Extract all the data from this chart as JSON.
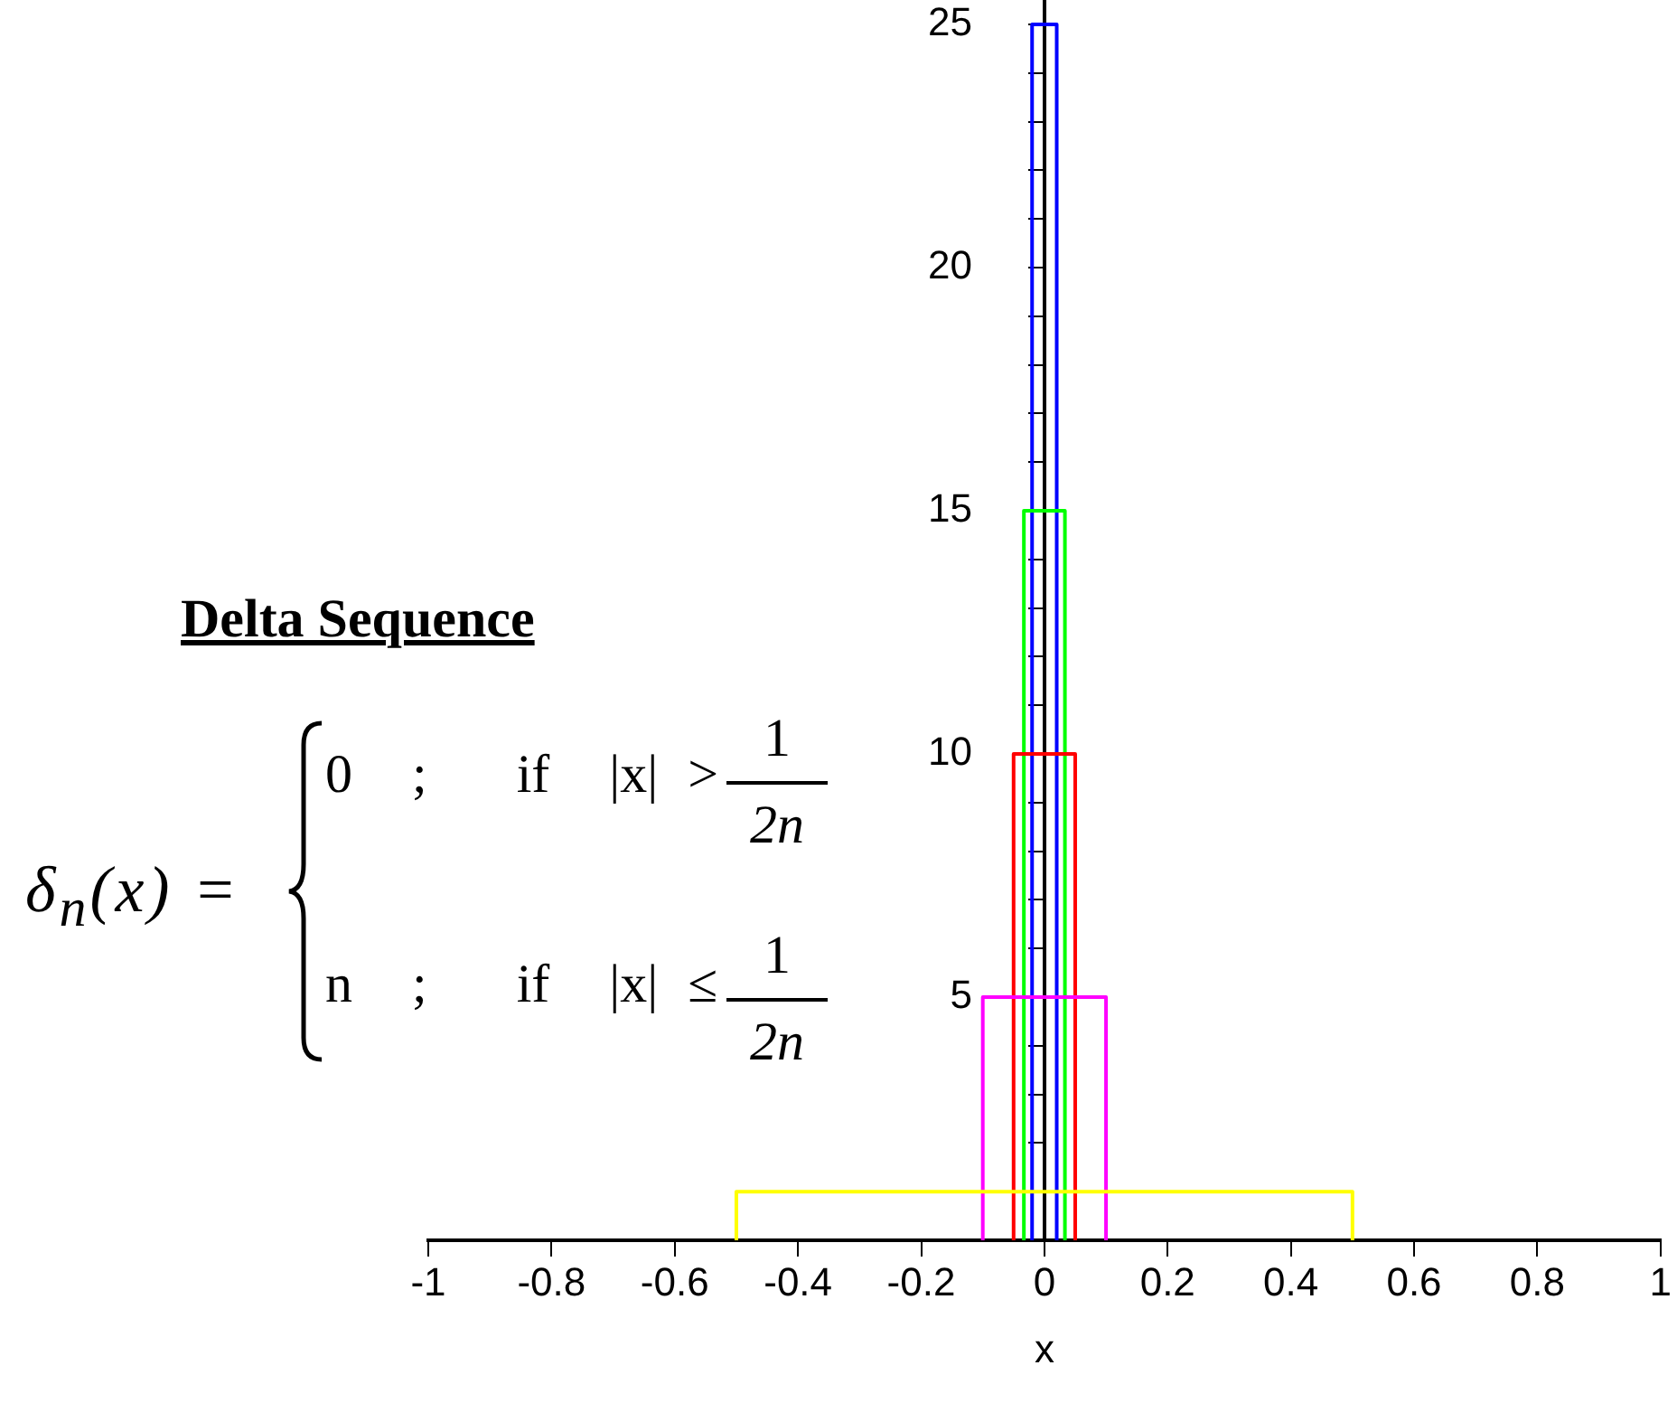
{
  "chart_data": {
    "type": "line",
    "xlabel": "x",
    "annotations": [
      "Delta Sequence",
      "δ$_{n}$(x) =",
      "0  ;   if  |x| >",
      "1",
      "2n",
      "n  ;   if  |x| ≤",
      "1",
      "2n"
    ],
    "series": [
      {
        "color": "#ffff00",
        "x": [
          -0.5,
          -0.5,
          0.5,
          0.5
        ],
        "values": [
          0,
          1,
          1,
          0
        ]
      },
      {
        "color": "#ff00ff",
        "x": [
          -0.1,
          -0.1,
          0.1,
          0.1
        ],
        "values": [
          0,
          5,
          5,
          0
        ]
      },
      {
        "color": "#ff0000",
        "x": [
          -0.05,
          -0.05,
          0.05,
          0.05
        ],
        "values": [
          0,
          10,
          10,
          0
        ]
      },
      {
        "color": "#00ff00",
        "x": [
          -0.0333,
          -0.0333,
          0.0333,
          0.0333
        ],
        "values": [
          0,
          15,
          15,
          0
        ]
      },
      {
        "color": "#0000ff",
        "x": [
          -0.02,
          -0.02,
          0.02,
          0.02
        ],
        "values": [
          0,
          25,
          25,
          0
        ]
      }
    ],
    "xlim": [
      -1,
      1
    ],
    "xticks": [
      -1,
      -0.8,
      -0.6,
      -0.4,
      -0.2,
      0,
      0.2,
      0.4,
      0.6,
      0.8,
      1
    ],
    "ylim": [
      0,
      25.5
    ],
    "yticks": [
      {
        "value": 1,
        "label": null
      },
      {
        "value": 2,
        "label": null
      },
      {
        "value": 3,
        "label": null
      },
      {
        "value": 4,
        "label": null
      },
      5,
      {
        "value": 6,
        "label": null
      },
      {
        "value": 7,
        "label": null
      },
      {
        "value": 8,
        "label": null
      },
      {
        "value": 9,
        "label": null
      },
      10,
      {
        "value": 11,
        "label": null
      },
      {
        "value": 12,
        "label": null
      },
      {
        "value": 13,
        "label": null
      },
      {
        "value": 14,
        "label": null
      },
      15,
      {
        "value": 16,
        "label": null
      },
      {
        "value": 17,
        "label": null
      },
      {
        "value": 18,
        "label": null
      },
      {
        "value": 19,
        "label": null
      },
      20,
      {
        "value": 21,
        "label": null
      },
      {
        "value": 22,
        "label": null
      },
      {
        "value": 23,
        "label": null
      },
      {
        "value": 24,
        "label": null
      },
      25
    ],
    "grid": false,
    "legend": false,
    "marker": "none",
    "line_style": "solid"
  }
}
